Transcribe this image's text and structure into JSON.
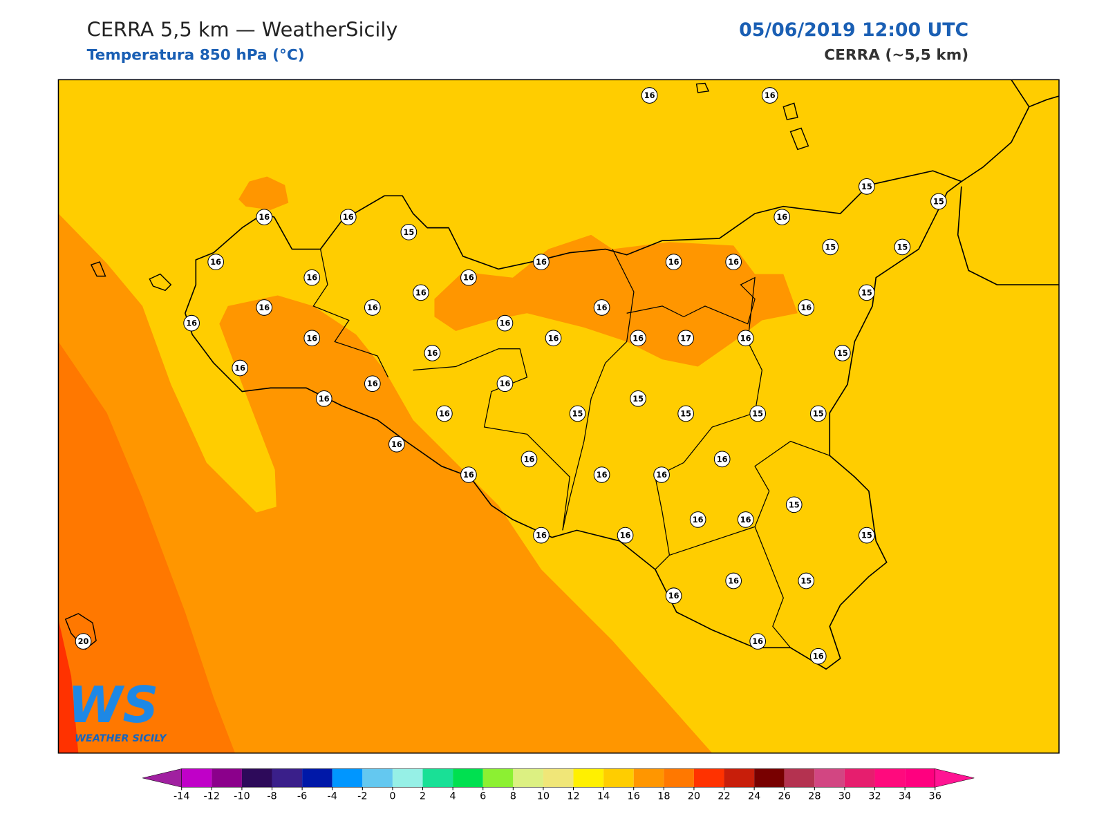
{
  "header": {
    "title": "CERRA 5,5 km — WeatherSicily",
    "subtitle": "Temperatura 850 hPa (°C)",
    "date": "05/06/2019 12:00 UTC",
    "source": "CERRA (~5,5 km)"
  },
  "stations": [
    16,
    16,
    15,
    15,
    16,
    16,
    15,
    16,
    16,
    16,
    16,
    16,
    16,
    16,
    15,
    15,
    16,
    15,
    16,
    16,
    16,
    16,
    16,
    16,
    16,
    16,
    16,
    17,
    16,
    16,
    15,
    16,
    16,
    16,
    16,
    15,
    16,
    15,
    15,
    15,
    15,
    16,
    16,
    16,
    16,
    16,
    16,
    15,
    16,
    16,
    16,
    16,
    15,
    16,
    16,
    15,
    16,
    16,
    20
  ],
  "colorbar": {
    "ticks": [
      -14,
      -12,
      -10,
      -8,
      -6,
      -4,
      -2,
      0,
      2,
      4,
      6,
      8,
      10,
      12,
      14,
      16,
      18,
      20,
      22,
      24,
      26,
      28,
      30,
      32,
      34,
      36
    ],
    "colors": [
      "#c000c8",
      "#8b008b",
      "#2d0a5a",
      "#3a1f8a",
      "#0018a8",
      "#0096ff",
      "#64c8f0",
      "#96f0e6",
      "#19e096",
      "#00e050",
      "#8cf032",
      "#dcf082",
      "#f0e678",
      "#fff000",
      "#ffcd00",
      "#ff9600",
      "#ff7800",
      "#ff3200",
      "#c81e0a",
      "#780000",
      "#b43250",
      "#d24682",
      "#e61e6e",
      "#ff0a7d",
      "#ff007f"
    ],
    "under_color": "#a020a0",
    "over_color": "#ff1493"
  },
  "logo": {
    "text": "WS",
    "caption": "WEATHER SICILY"
  }
}
